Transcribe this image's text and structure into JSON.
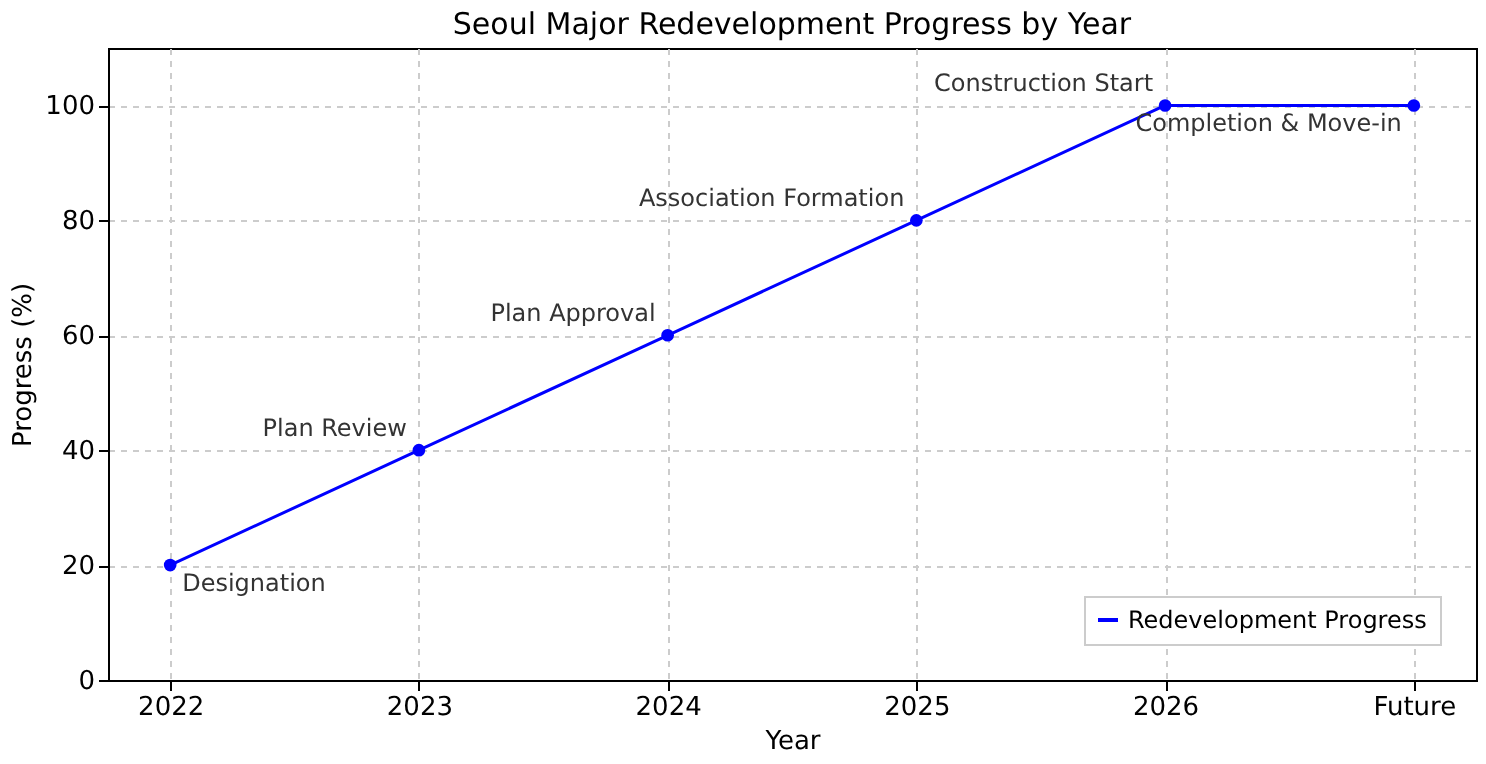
{
  "chart_data": {
    "type": "line",
    "title": "Seoul Major Redevelopment Progress by Year",
    "xlabel": "Year",
    "ylabel": "Progress (%)",
    "categories": [
      "2022",
      "2023",
      "2024",
      "2025",
      "2026",
      "Future"
    ],
    "series": [
      {
        "name": "Redevelopment Progress",
        "color": "#0000ff",
        "values": [
          20,
          40,
          60,
          80,
          100,
          100
        ]
      }
    ],
    "ylim": [
      0,
      110
    ],
    "yticks": [
      0,
      20,
      40,
      60,
      80,
      100
    ],
    "grid": true,
    "legend": "bottom right",
    "marker": "circle",
    "line_style": "solid",
    "annotations": [
      {
        "text": "Designation",
        "x": "2022",
        "y": 20
      },
      {
        "text": "Plan Review",
        "x": "2023",
        "y": 40
      },
      {
        "text": "Plan Approval",
        "x": "2024",
        "y": 60
      },
      {
        "text": "Association Formation",
        "x": "2025",
        "y": 80
      },
      {
        "text": "Construction Start",
        "x": "2026",
        "y": 100
      },
      {
        "text": "Completion & Move-in",
        "x": "Future",
        "y": 100
      }
    ]
  }
}
